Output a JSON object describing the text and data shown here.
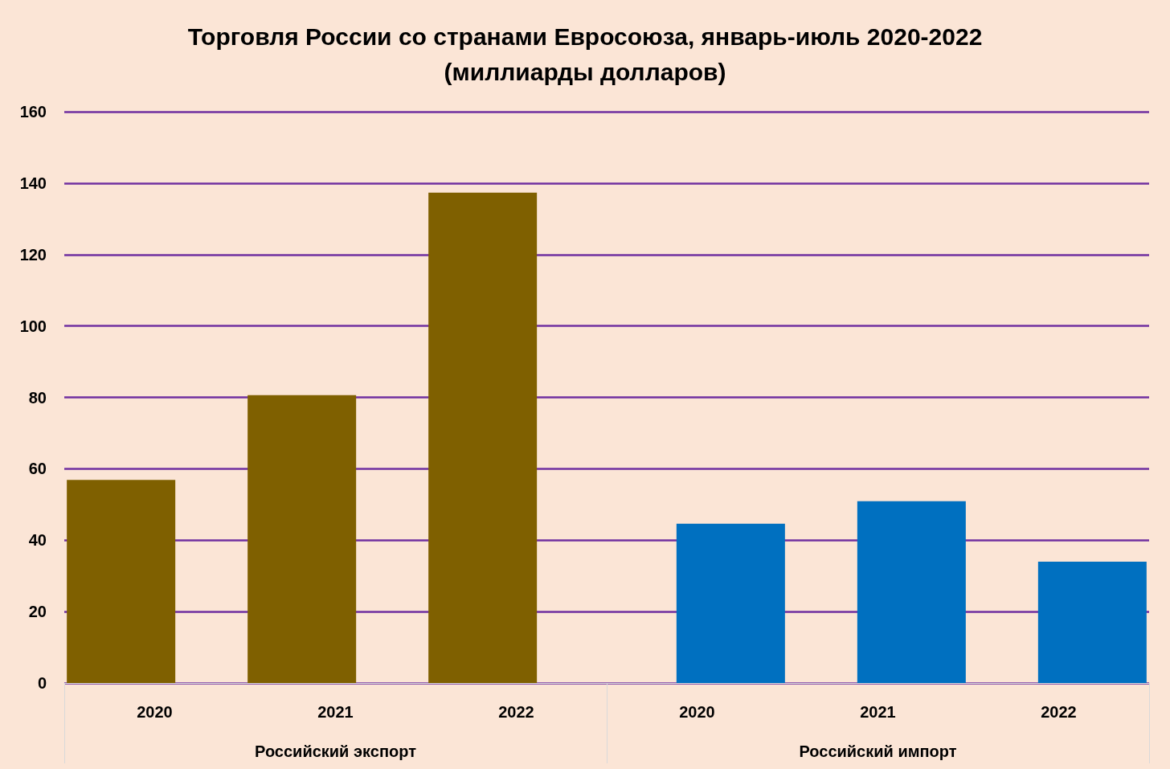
{
  "chart_data": {
    "type": "bar",
    "title": "Торговля России со странами Евросоюза, январь-июль 2020-2022\n(миллиарды долларов)",
    "categories": [
      "2020",
      "2021",
      "2022",
      "2020",
      "2021",
      "2022"
    ],
    "series": [
      {
        "color": "#7f6000",
        "values": [
          56.9,
          80.6,
          137.3,
          null,
          null,
          null
        ]
      },
      {
        "color": "#0070c0",
        "values": [
          null,
          null,
          null,
          44.6,
          50.9,
          34.0
        ]
      }
    ],
    "ylim": [
      0,
      160
    ],
    "yticks": [
      0,
      20,
      40,
      60,
      80,
      100,
      120,
      140,
      160
    ],
    "grid": "y",
    "annotations": [
      "Российский экспорт",
      "Российский импорт"
    ]
  }
}
